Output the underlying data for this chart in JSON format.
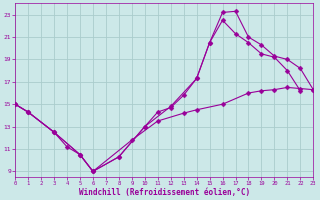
{
  "xlabel": "Windchill (Refroidissement éolien,°C)",
  "bg_color": "#cce8e8",
  "grid_color": "#aacccc",
  "line_color": "#990099",
  "xlim": [
    0,
    23
  ],
  "ylim": [
    8.5,
    24.0
  ],
  "xticks": [
    0,
    1,
    2,
    3,
    4,
    5,
    6,
    7,
    8,
    9,
    10,
    11,
    12,
    13,
    14,
    15,
    16,
    17,
    18,
    19,
    20,
    21,
    22,
    23
  ],
  "yticks": [
    9,
    11,
    13,
    15,
    17,
    19,
    21,
    23
  ],
  "line1_x": [
    0,
    1,
    3,
    4,
    5,
    6,
    8,
    10,
    12,
    14,
    15,
    16,
    17,
    18,
    19,
    20,
    21,
    22,
    23
  ],
  "line1_y": [
    15.0,
    14.3,
    12.5,
    11.2,
    10.5,
    9.0,
    10.3,
    13.0,
    14.8,
    17.3,
    20.5,
    23.2,
    23.3,
    21.0,
    20.3,
    19.3,
    19.0,
    18.2,
    16.3
  ],
  "line2_x": [
    0,
    1,
    3,
    5,
    6,
    8,
    10,
    11,
    12,
    13,
    14,
    15,
    16,
    17,
    18,
    19,
    20,
    21,
    22
  ],
  "line2_y": [
    15.0,
    14.3,
    12.5,
    10.5,
    9.0,
    10.3,
    13.0,
    14.3,
    14.7,
    15.8,
    17.3,
    20.5,
    22.5,
    21.3,
    20.5,
    19.5,
    19.2,
    18.0,
    16.2
  ],
  "line3_x": [
    0,
    1,
    3,
    5,
    6,
    9,
    11,
    13,
    14,
    16,
    18,
    19,
    20,
    21,
    22,
    23
  ],
  "line3_y": [
    15.0,
    14.3,
    12.5,
    10.5,
    9.0,
    11.8,
    13.5,
    14.2,
    14.5,
    15.0,
    16.0,
    16.2,
    16.3,
    16.5,
    16.4,
    16.3
  ]
}
